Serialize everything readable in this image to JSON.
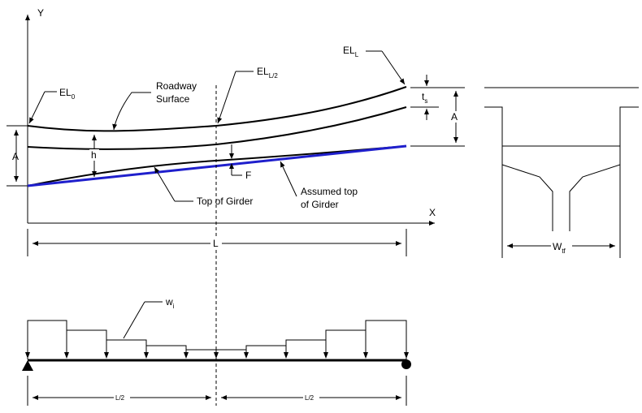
{
  "axes": {
    "y": "Y",
    "x": "X"
  },
  "labels": {
    "el0": {
      "main": "EL",
      "sub": "0"
    },
    "roadway": {
      "line1": "Roadway",
      "line2": "Surface"
    },
    "elmid": {
      "main": "EL",
      "sub": "L/2"
    },
    "ell": {
      "main": "EL",
      "sub": "L"
    },
    "ts": {
      "main": "t",
      "sub": "s"
    },
    "a_right": "A",
    "a_left": "A",
    "h": "h",
    "f": "F",
    "top_girder": "Top of Girder",
    "assumed": {
      "line1": "Assumed top",
      "line2": "of Girder"
    },
    "span_l": "L",
    "wtf": {
      "main": "W",
      "sub": "tf"
    },
    "wi": {
      "main": "w",
      "sub": "i"
    },
    "half_left": "L/2",
    "half_right": "L/2"
  },
  "colors": {
    "line": "#000000",
    "assumed_girder": "#1f1fcc"
  },
  "load_steps": [
    5,
    4,
    3,
    2,
    1,
    1,
    2,
    3,
    4,
    5
  ]
}
